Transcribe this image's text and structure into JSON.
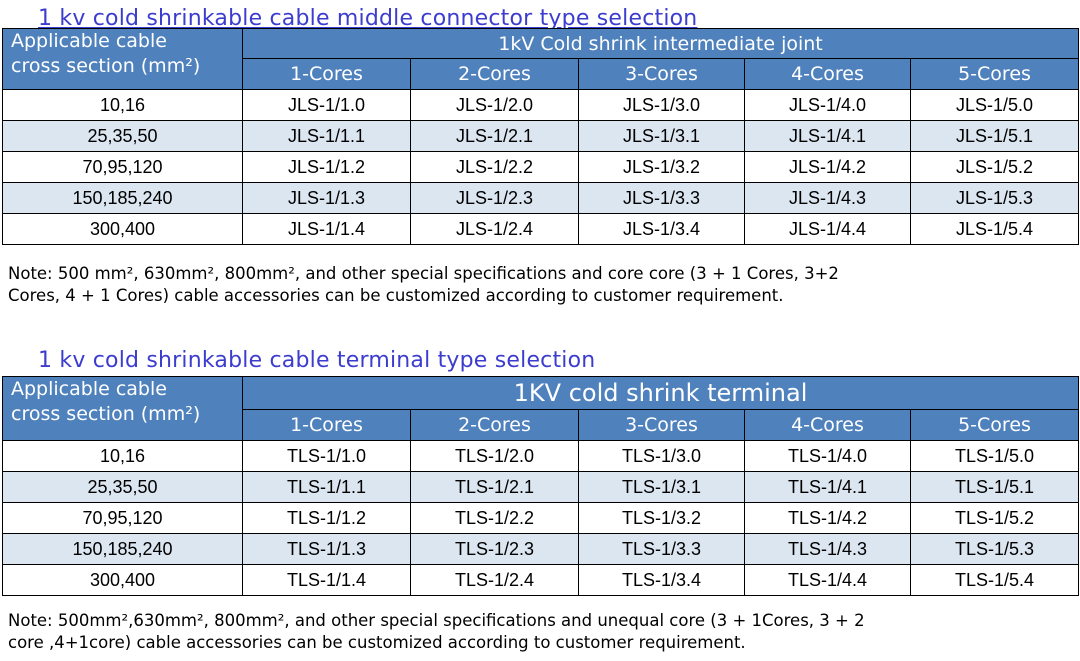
{
  "midjoint": {
    "title": "1 kv cold shrinkable  cable middle connector type selection",
    "cross_header": [
      "Applicable cable",
      "cross section (mm²)"
    ],
    "group_header": "1kV Cold shrink intermediate joint",
    "cores": [
      "1-Cores",
      "2-Cores",
      "3-Cores",
      "4-Cores",
      "5-Cores"
    ],
    "rows": [
      {
        "size": "10,16",
        "cells": [
          "JLS-1/1.0",
          "JLS-1/2.0",
          "JLS-1/3.0",
          "JLS-1/4.0",
          "JLS-1/5.0"
        ]
      },
      {
        "size": "25,35,50",
        "cells": [
          "JLS-1/1.1",
          "JLS-1/2.1",
          "JLS-1/3.1",
          "JLS-1/4.1",
          "JLS-1/5.1"
        ]
      },
      {
        "size": "70,95,120",
        "cells": [
          "JLS-1/1.2",
          "JLS-1/2.2",
          "JLS-1/3.2",
          "JLS-1/4.2",
          "JLS-1/5.2"
        ]
      },
      {
        "size": "150,185,240",
        "cells": [
          "JLS-1/1.3",
          "JLS-1/2.3",
          "JLS-1/3.3",
          "JLS-1/4.3",
          "JLS-1/5.3"
        ]
      },
      {
        "size": "300,400",
        "cells": [
          "JLS-1/1.4",
          "JLS-1/2.4",
          "JLS-1/3.4",
          "JLS-1/4.4",
          "JLS-1/5.4"
        ]
      }
    ],
    "note": [
      "Note: 500 mm², 630mm², 800mm², and other special specifications and core core (3 + 1 Cores, 3+2",
      "Cores, 4 + 1 Cores) cable accessories can be customized according to customer requirement."
    ]
  },
  "terminal": {
    "title": "1 kv cold shrinkable  cable terminal type selection",
    "cross_header": [
      "Applicable cable",
      "cross section (mm²)"
    ],
    "group_header": "1KV cold shrink terminal",
    "cores": [
      "1-Cores",
      "2-Cores",
      "3-Cores",
      "4-Cores",
      "5-Cores"
    ],
    "rows": [
      {
        "size": "10,16",
        "cells": [
          "TLS-1/1.0",
          "TLS-1/2.0",
          "TLS-1/3.0",
          "TLS-1/4.0",
          "TLS-1/5.0"
        ]
      },
      {
        "size": "25,35,50",
        "cells": [
          "TLS-1/1.1",
          "TLS-1/2.1",
          "TLS-1/3.1",
          "TLS-1/4.1",
          "TLS-1/5.1"
        ]
      },
      {
        "size": "70,95,120",
        "cells": [
          "TLS-1/1.2",
          "TLS-1/2.2",
          "TLS-1/3.2",
          "TLS-1/4.2",
          "TLS-1/5.2"
        ]
      },
      {
        "size": "150,185,240",
        "cells": [
          "TLS-1/1.3",
          "TLS-1/2.3",
          "TLS-1/3.3",
          "TLS-1/4.3",
          "TLS-1/5.3"
        ]
      },
      {
        "size": "300,400",
        "cells": [
          "TLS-1/1.4",
          "TLS-1/2.4",
          "TLS-1/3.4",
          "TLS-1/4.4",
          "TLS-1/5.4"
        ]
      }
    ],
    "note": [
      "Note: 500mm²,630mm², 800mm², and other special specifications and unequal  core (3 + 1Cores, 3 + 2",
      "core ,4+1core) cable accessories can be customized according to customer requirement."
    ]
  }
}
